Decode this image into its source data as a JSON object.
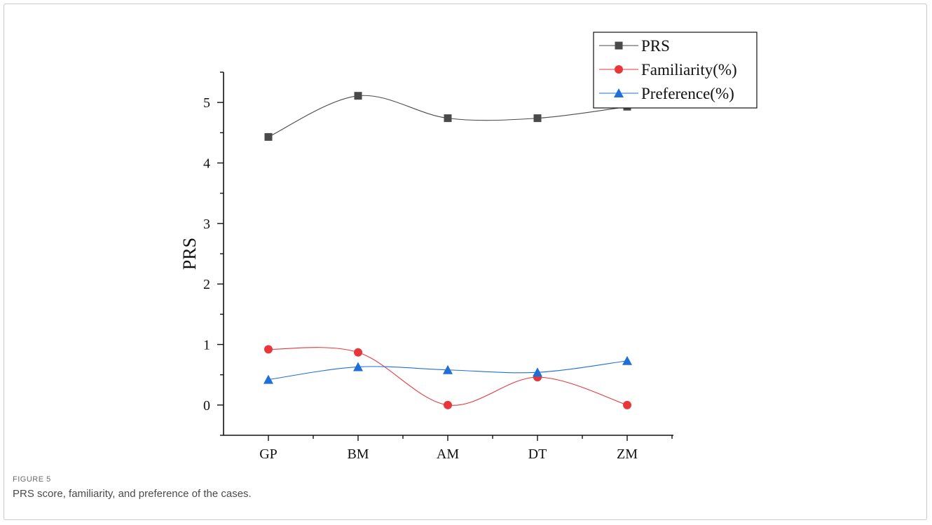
{
  "figure": {
    "label": "FIGURE 5",
    "caption": "PRS score, familiarity, and preference of the cases."
  },
  "chart_data": {
    "type": "line",
    "categories": [
      "GP",
      "BM",
      "AM",
      "DT",
      "ZM"
    ],
    "ylabel": "PRS",
    "xlabel": "",
    "ylim": [
      -0.5,
      5.5
    ],
    "yticks": [
      "0",
      "1",
      "2",
      "3",
      "4",
      "5"
    ],
    "grid": false,
    "smoothed": true,
    "legend_position": "top-right",
    "series": [
      {
        "name": "PRS",
        "marker": "square",
        "color": "#4a4a4a",
        "values": [
          4.43,
          5.11,
          4.74,
          4.74,
          4.93
        ]
      },
      {
        "name": "Familiarity(%)",
        "marker": "circle",
        "color": "#e8363a",
        "values": [
          0.92,
          0.87,
          0.0,
          0.46,
          0.0
        ]
      },
      {
        "name": "Preference(%)",
        "marker": "triangle",
        "color": "#1f6fd6",
        "values": [
          0.42,
          0.63,
          0.58,
          0.54,
          0.73
        ]
      }
    ]
  }
}
